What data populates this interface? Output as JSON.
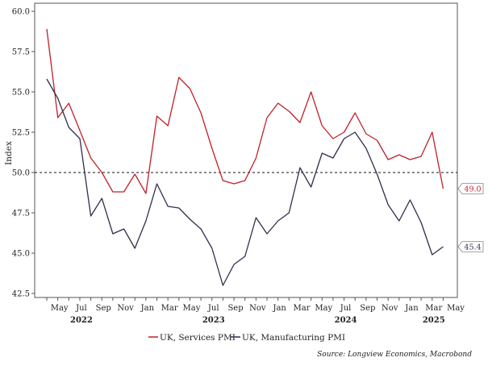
{
  "chart_data": {
    "type": "line",
    "ylabel": "Index",
    "ylim": [
      42.5,
      60.0
    ],
    "yticks": [
      "60.0",
      "57.5",
      "55.0",
      "52.5",
      "50.0",
      "47.5",
      "45.0",
      "42.5"
    ],
    "xtick_labels": [
      "May",
      "Jul",
      "Sep",
      "Nov",
      "Jan",
      "Mar",
      "May",
      "Jul",
      "Sep",
      "Nov",
      "Jan",
      "Mar",
      "May",
      "Jul",
      "Sep",
      "Nov",
      "Jan",
      "Mar",
      "May"
    ],
    "year_labels": [
      "2022",
      "2023",
      "2024",
      "2025"
    ],
    "x": [
      "Apr 2022",
      "May 2022",
      "Jun 2022",
      "Jul 2022",
      "Aug 2022",
      "Sep 2022",
      "Oct 2022",
      "Nov 2022",
      "Dec 2022",
      "Jan 2023",
      "Feb 2023",
      "Mar 2023",
      "Apr 2023",
      "May 2023",
      "Jun 2023",
      "Jul 2023",
      "Aug 2023",
      "Sep 2023",
      "Oct 2023",
      "Nov 2023",
      "Dec 2023",
      "Jan 2024",
      "Feb 2024",
      "Mar 2024",
      "Apr 2024",
      "May 2024",
      "Jun 2024",
      "Jul 2024",
      "Aug 2024",
      "Sep 2024",
      "Oct 2024",
      "Nov 2024",
      "Dec 2024",
      "Jan 2025",
      "Feb 2025",
      "Mar 2025",
      "Apr 2025"
    ],
    "reference_line": 50.0,
    "series": [
      {
        "name": "UK, Services PMI",
        "color": "#c0202a",
        "values": [
          58.9,
          53.4,
          54.3,
          52.6,
          50.9,
          50.0,
          48.8,
          48.8,
          49.9,
          48.7,
          53.5,
          52.9,
          55.9,
          55.2,
          53.7,
          51.5,
          49.5,
          49.3,
          49.5,
          50.9,
          53.4,
          54.3,
          53.8,
          53.1,
          55.0,
          52.9,
          52.1,
          52.5,
          53.7,
          52.4,
          52.0,
          50.8,
          51.1,
          50.8,
          51.0,
          52.5,
          49.0
        ],
        "end_label": "49.0"
      },
      {
        "name": "UK, Manufacturing PMI",
        "color": "#2e2f4a",
        "values": [
          55.8,
          54.6,
          52.8,
          52.1,
          47.3,
          48.4,
          46.2,
          46.5,
          45.3,
          47.0,
          49.3,
          47.9,
          47.8,
          47.1,
          46.5,
          45.3,
          43.0,
          44.3,
          44.8,
          47.2,
          46.2,
          47.0,
          47.5,
          50.3,
          49.1,
          51.2,
          50.9,
          52.1,
          52.5,
          51.5,
          49.9,
          48.0,
          47.0,
          48.3,
          46.9,
          44.9,
          45.4
        ],
        "end_label": "45.4"
      }
    ],
    "grid": false,
    "legend_position": "bottom-center"
  },
  "source": "Source: Longview Economics, Macrobond"
}
